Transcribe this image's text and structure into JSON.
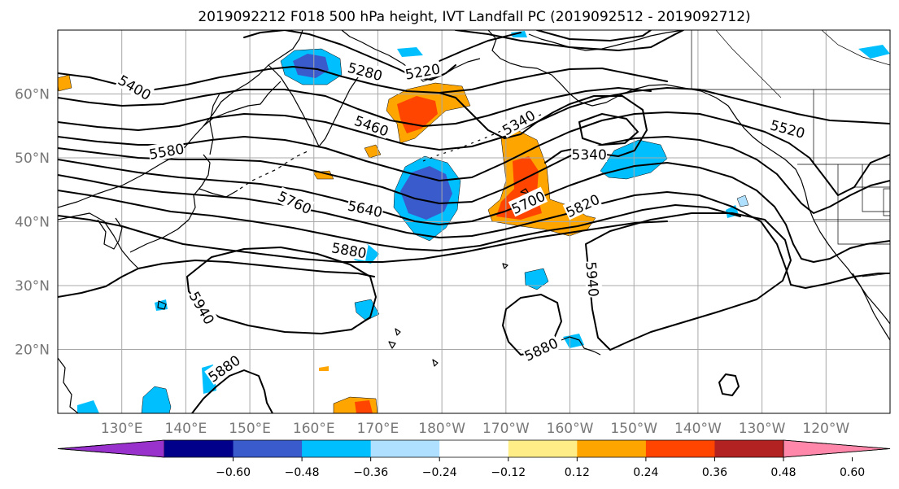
{
  "title": "2019092212 F018 500 hPa height, IVT Landfall PC (2019092512 - 2019092712)",
  "lat_ticks": [
    {
      "lat": 60,
      "label": "60°N"
    },
    {
      "lat": 50,
      "label": "50°N"
    },
    {
      "lat": 40,
      "label": "40°N"
    },
    {
      "lat": 30,
      "label": "30°N"
    },
    {
      "lat": 20,
      "label": "20°N"
    }
  ],
  "lon_ticks": [
    {
      "lon": 130,
      "label": "130°E"
    },
    {
      "lon": 140,
      "label": "140°E"
    },
    {
      "lon": 150,
      "label": "150°E"
    },
    {
      "lon": 160,
      "label": "160°E"
    },
    {
      "lon": 170,
      "label": "170°E"
    },
    {
      "lon": 180,
      "label": "180°W"
    },
    {
      "lon": 190,
      "label": "170°W"
    },
    {
      "lon": 200,
      "label": "160°W"
    },
    {
      "lon": 210,
      "label": "150°W"
    },
    {
      "lon": 220,
      "label": "140°W"
    },
    {
      "lon": 230,
      "label": "130°W"
    },
    {
      "lon": 240,
      "label": "120°W"
    }
  ],
  "extent": {
    "lon_min": 120,
    "lon_max": 250,
    "lat_min": 10,
    "lat_max": 70
  },
  "colorbar": {
    "colors": [
      "#9932cc",
      "#00008b",
      "#3a5bcc",
      "#00bfff",
      "#b0e0ff",
      "#ffffff",
      "#ffee88",
      "#ffa500",
      "#ff4500",
      "#b22222",
      "#ff88aa"
    ],
    "tick_labels": [
      "−0.60",
      "−0.48",
      "−0.36",
      "−0.24",
      "−0.12",
      "0.12",
      "0.24",
      "0.36",
      "0.48",
      "0.60"
    ],
    "extend": "both"
  },
  "contour_labels": [
    {
      "text": "5400",
      "lon": 132,
      "lat": 61,
      "rot": 30
    },
    {
      "text": "5280",
      "lon": 168,
      "lat": 63.5,
      "rot": 15
    },
    {
      "text": "5220",
      "lon": 177,
      "lat": 63.5,
      "rot": -10
    },
    {
      "text": "5460",
      "lon": 169,
      "lat": 55,
      "rot": 20
    },
    {
      "text": "5340",
      "lon": 192,
      "lat": 55.5,
      "rot": -30
    },
    {
      "text": "5340",
      "lon": 203,
      "lat": 50.5,
      "rot": 0
    },
    {
      "text": "5520",
      "lon": 234,
      "lat": 54.5,
      "rot": 15
    },
    {
      "text": "5580",
      "lon": 137,
      "lat": 51,
      "rot": -10
    },
    {
      "text": "5760",
      "lon": 157,
      "lat": 43,
      "rot": 25
    },
    {
      "text": "5640",
      "lon": 168,
      "lat": 42,
      "rot": 12
    },
    {
      "text": "5700",
      "lon": 193.5,
      "lat": 43,
      "rot": -25
    },
    {
      "text": "5820",
      "lon": 202,
      "lat": 42.5,
      "rot": -25
    },
    {
      "text": "5880",
      "lon": 165.5,
      "lat": 35.5,
      "rot": 10
    },
    {
      "text": "5940",
      "lon": 142.5,
      "lat": 26.5,
      "rot": 60
    },
    {
      "text": "5940",
      "lon": 203.5,
      "lat": 31,
      "rot": 85
    },
    {
      "text": "5880",
      "lon": 195.5,
      "lat": 20,
      "rot": -25
    },
    {
      "text": "5880",
      "lon": 146,
      "lat": 17,
      "rot": -35
    }
  ]
}
